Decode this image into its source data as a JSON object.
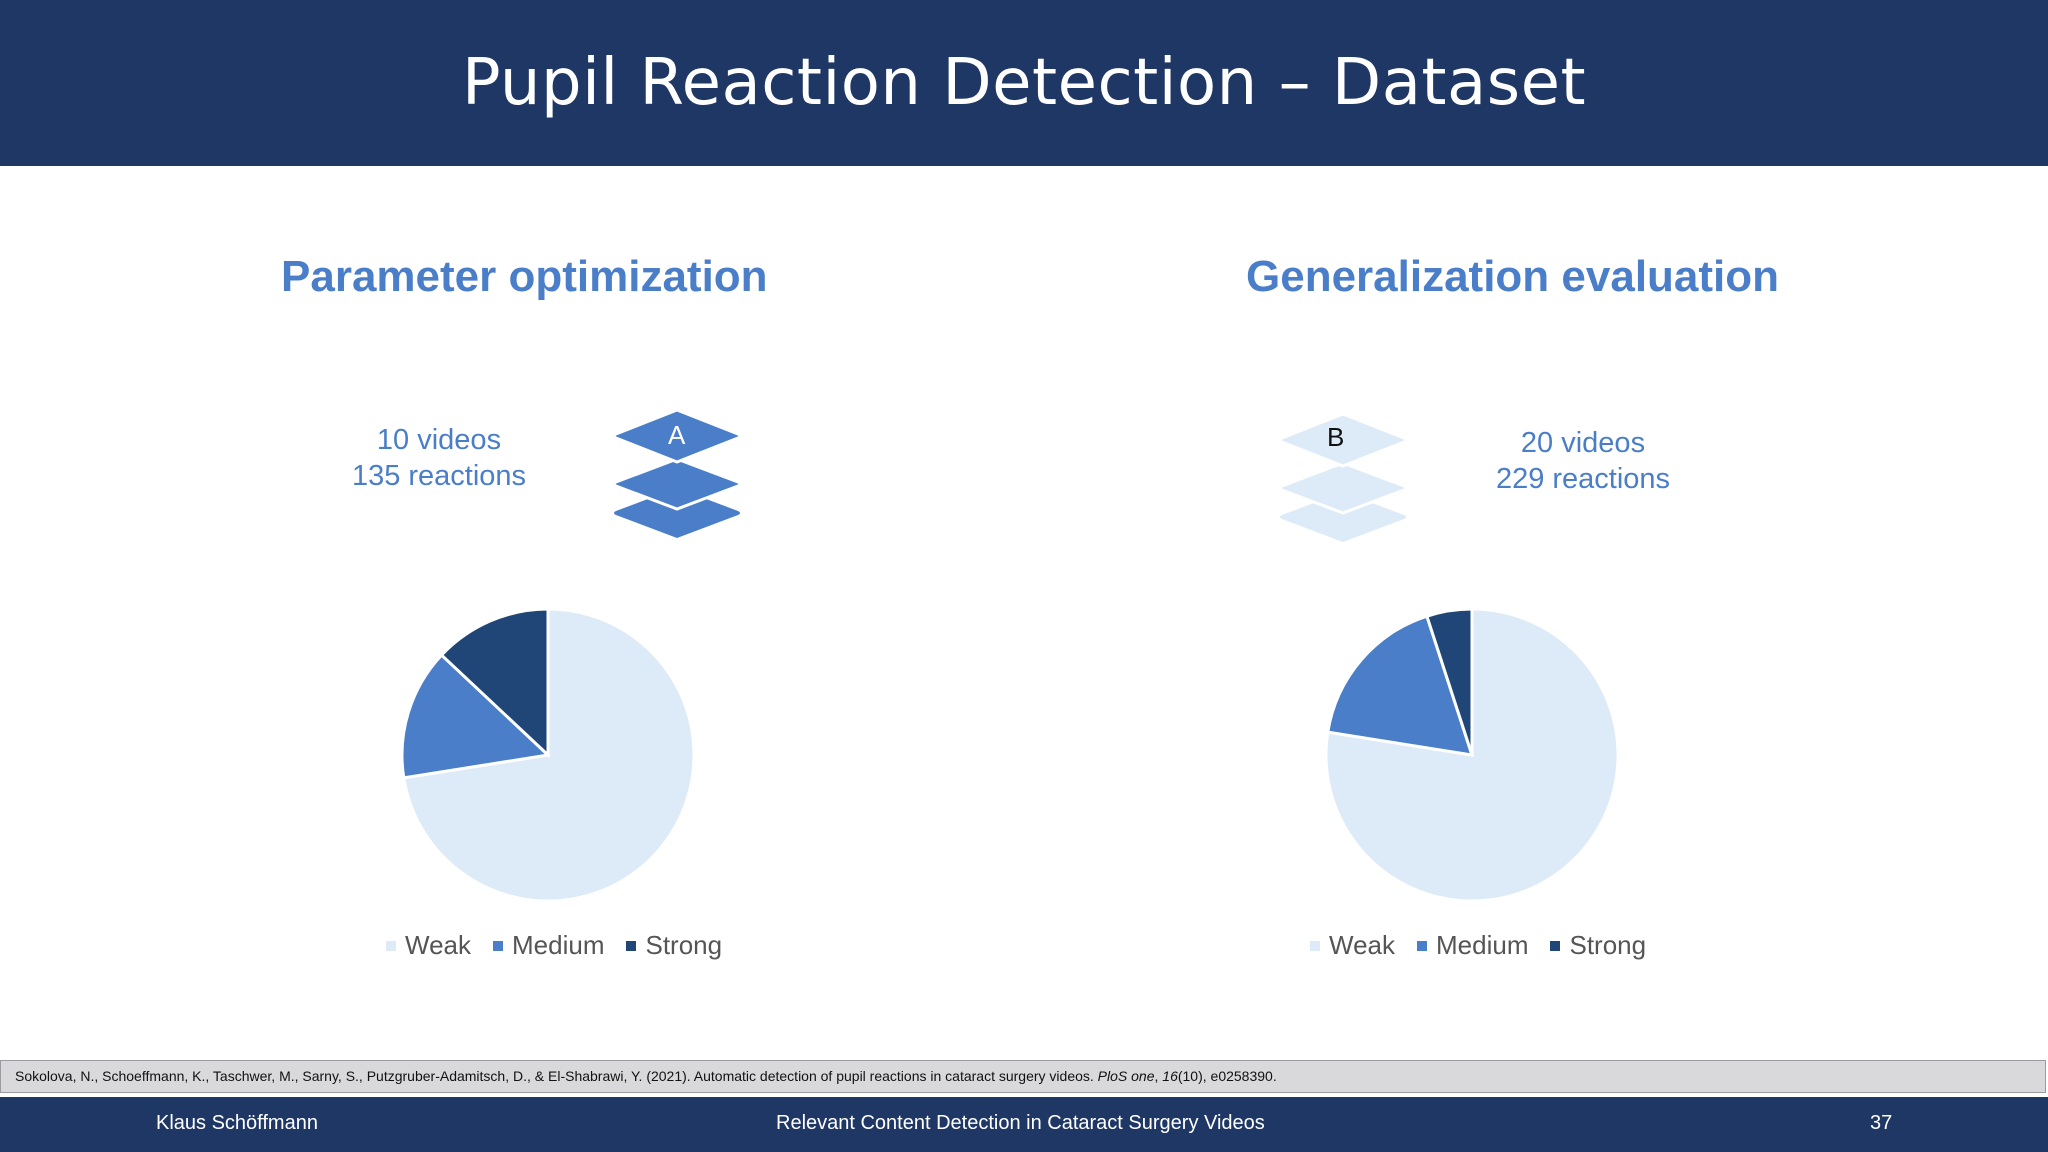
{
  "title": "Pupil Reaction Detection – Dataset",
  "left": {
    "heading": "Parameter optimization",
    "videos": "10 videos",
    "reactions": "135 reactions",
    "stack_label": "A",
    "stack_color": "#4a7ec8"
  },
  "right": {
    "heading": "Generalization evaluation",
    "videos": "20 videos",
    "reactions": "229 reactions",
    "stack_label": "B",
    "stack_color": "#ddeaf7"
  },
  "legend": [
    "Weak",
    "Medium",
    "Strong"
  ],
  "colors": {
    "weak": "#ddeaf7",
    "medium": "#4a7ec8",
    "strong": "#1f4677",
    "brand": "#1f3764"
  },
  "chart_data": [
    {
      "type": "pie",
      "categories": [
        "Weak",
        "Medium",
        "Strong"
      ],
      "values": [
        72.5,
        14.5,
        13.0
      ],
      "legend_position": "bottom"
    },
    {
      "type": "pie",
      "categories": [
        "Weak",
        "Medium",
        "Strong"
      ],
      "values": [
        77.5,
        17.5,
        5.0
      ],
      "legend_position": "bottom"
    }
  ],
  "citation": {
    "text": "Sokolova, N., Schoeffmann, K., Taschwer, M., Sarny, S., Putzgruber-Adamitsch, D., & El-Shabrawi, Y. (2021). Automatic detection of pupil reactions in cataract surgery videos. ",
    "journal": "PloS one",
    "rest_a": ", ",
    "volume": "16",
    "rest_b": "(10), e0258390."
  },
  "footer": {
    "author": "Klaus Schöffmann",
    "talk_title": "Relevant Content Detection in Cataract Surgery Videos",
    "page_number": "37"
  }
}
